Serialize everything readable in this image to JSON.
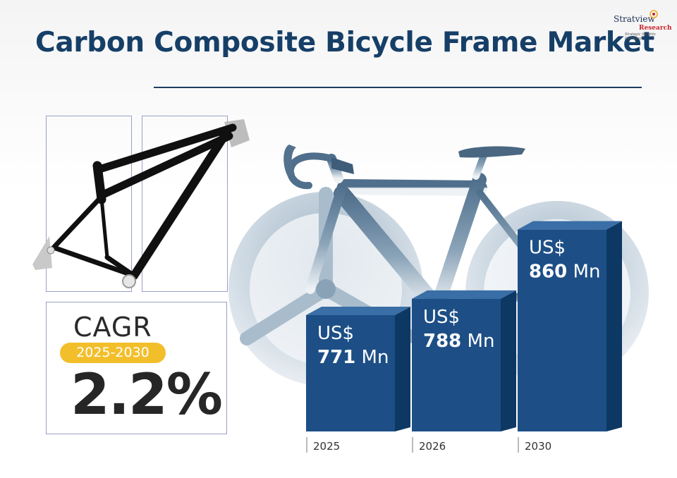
{
  "title": "Carbon Composite Bicycle Frame Market",
  "logo": {
    "name_line1": "Stratview",
    "name_line2": "Research",
    "tagline": "Strategic Insights Delivered"
  },
  "cagr": {
    "label": "CAGR",
    "period": "2025-2030",
    "value": "2.2%"
  },
  "colors": {
    "title": "#163f67",
    "bar_front": "#1d4f86",
    "bar_side": "#0d3864",
    "bar_top": "#3a6ea6",
    "pill": "#f2bf2b"
  },
  "chart_data": {
    "type": "bar",
    "categories": [
      "2025",
      "2026",
      "2030"
    ],
    "values": [
      771,
      788,
      860
    ],
    "currency_label": "US$",
    "unit_label": "Mn",
    "value_labels": [
      "771",
      "788",
      "860"
    ],
    "ylim": [
      650,
      870
    ],
    "grid": false,
    "legend": "none"
  }
}
